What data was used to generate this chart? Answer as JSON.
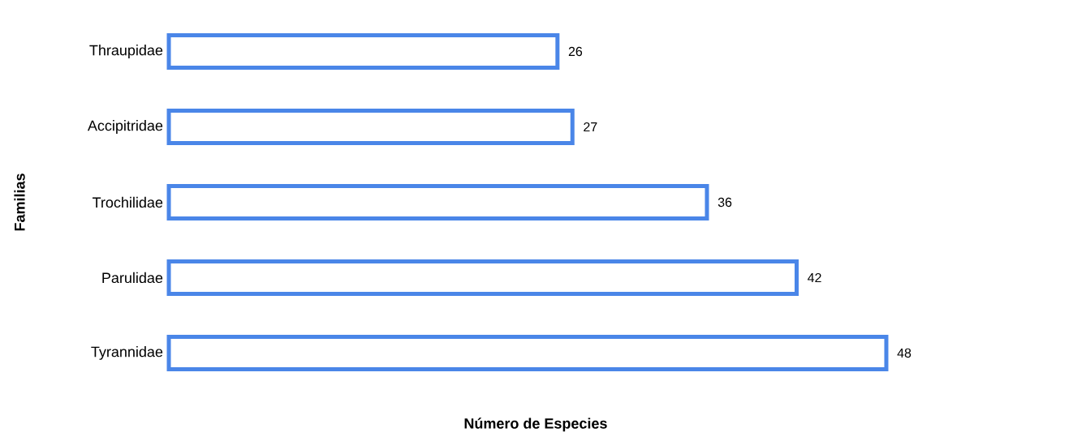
{
  "chart_data": {
    "type": "bar",
    "orientation": "horizontal",
    "xlabel": "Número de Especies",
    "ylabel": "Familias",
    "categories": [
      "Thraupidae",
      "Accipitridae",
      "Trochilidae",
      "Parulidae",
      "Tyrannidae"
    ],
    "values": [
      26,
      27,
      36,
      42,
      48
    ],
    "color": "#4a86e8",
    "data_labels": true
  }
}
